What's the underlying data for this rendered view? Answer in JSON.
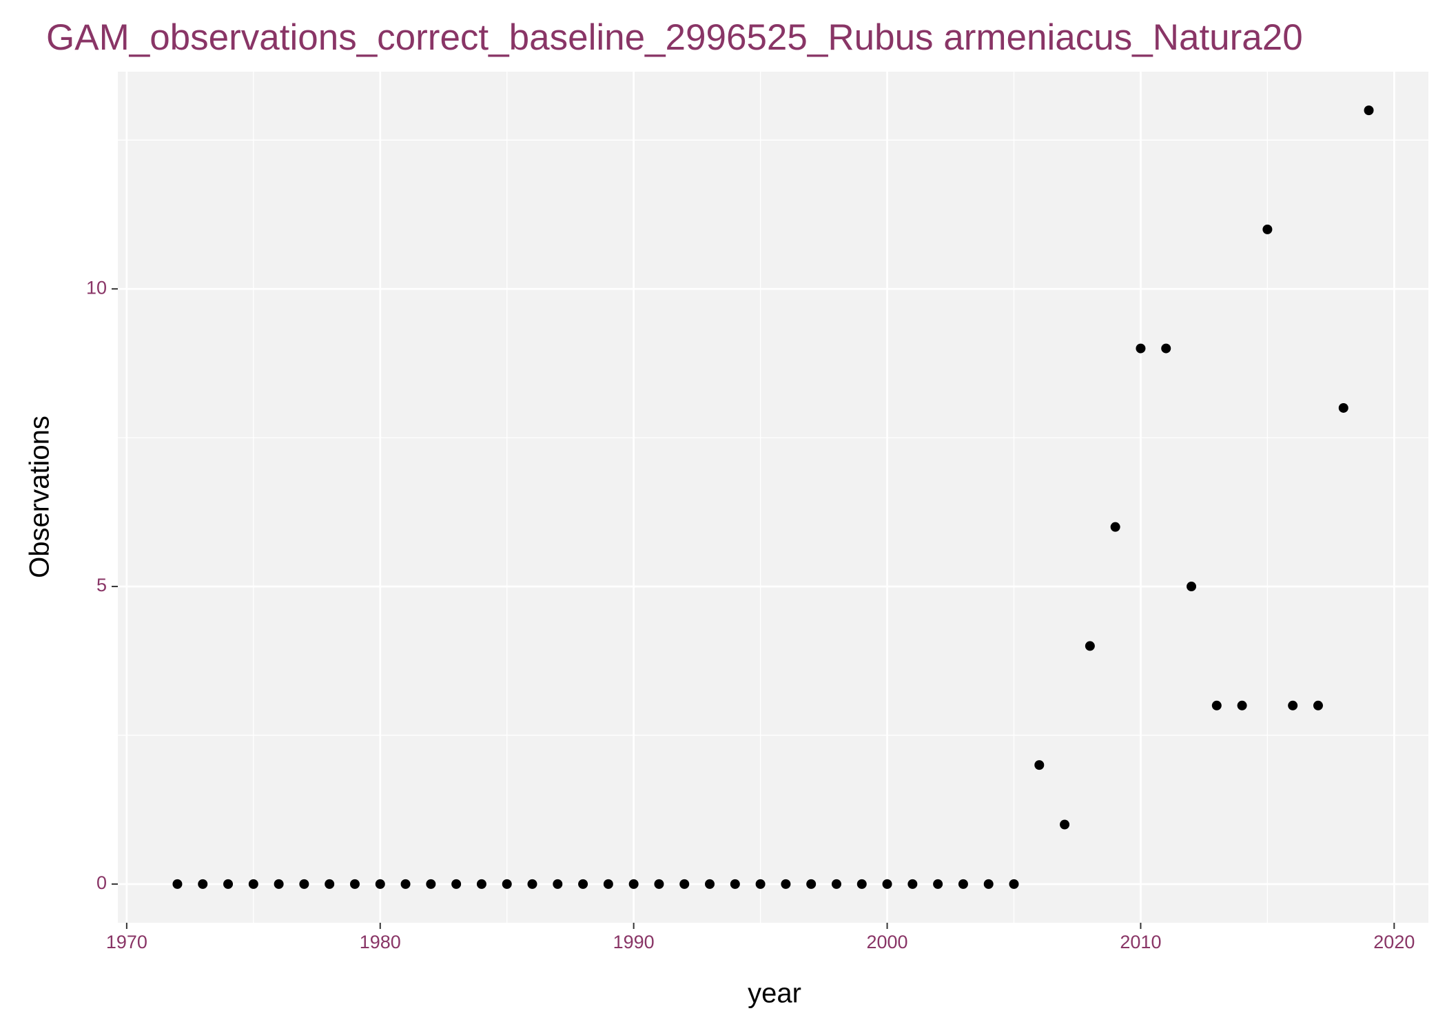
{
  "chart_data": {
    "type": "scatter",
    "title": "GAM_observations_correct_baseline_2996525_Rubus armeniacus_Natura20",
    "x_label": "year",
    "y_label": "Observations",
    "x": [
      1972,
      1973,
      1974,
      1975,
      1976,
      1977,
      1978,
      1979,
      1980,
      1981,
      1982,
      1983,
      1984,
      1985,
      1986,
      1987,
      1988,
      1989,
      1990,
      1991,
      1992,
      1993,
      1994,
      1995,
      1996,
      1997,
      1998,
      1999,
      2000,
      2001,
      2002,
      2003,
      2004,
      2005,
      2006,
      2007,
      2008,
      2009,
      2010,
      2011,
      2012,
      2013,
      2014,
      2015,
      2016,
      2017,
      2018,
      2019
    ],
    "values": [
      0,
      0,
      0,
      0,
      0,
      0,
      0,
      0,
      0,
      0,
      0,
      0,
      0,
      0,
      0,
      0,
      0,
      0,
      0,
      0,
      0,
      0,
      0,
      0,
      0,
      0,
      0,
      0,
      0,
      0,
      0,
      0,
      0,
      0,
      2,
      1,
      4,
      6,
      9,
      9,
      5,
      3,
      3,
      11,
      3,
      3,
      8,
      13
    ],
    "color": "#000000",
    "xlim": [
      1969.65,
      2021.35
    ],
    "ylim": [
      -0.65,
      13.65
    ],
    "xticks": [
      1970,
      1980,
      1990,
      2000,
      2010,
      2020
    ],
    "yticks": [
      0,
      5,
      10
    ],
    "x_minor_grid": [
      1975,
      1985,
      1995,
      2005,
      2015
    ],
    "y_minor_grid": [
      2.5,
      7.5,
      12.5
    ],
    "grid": true
  }
}
